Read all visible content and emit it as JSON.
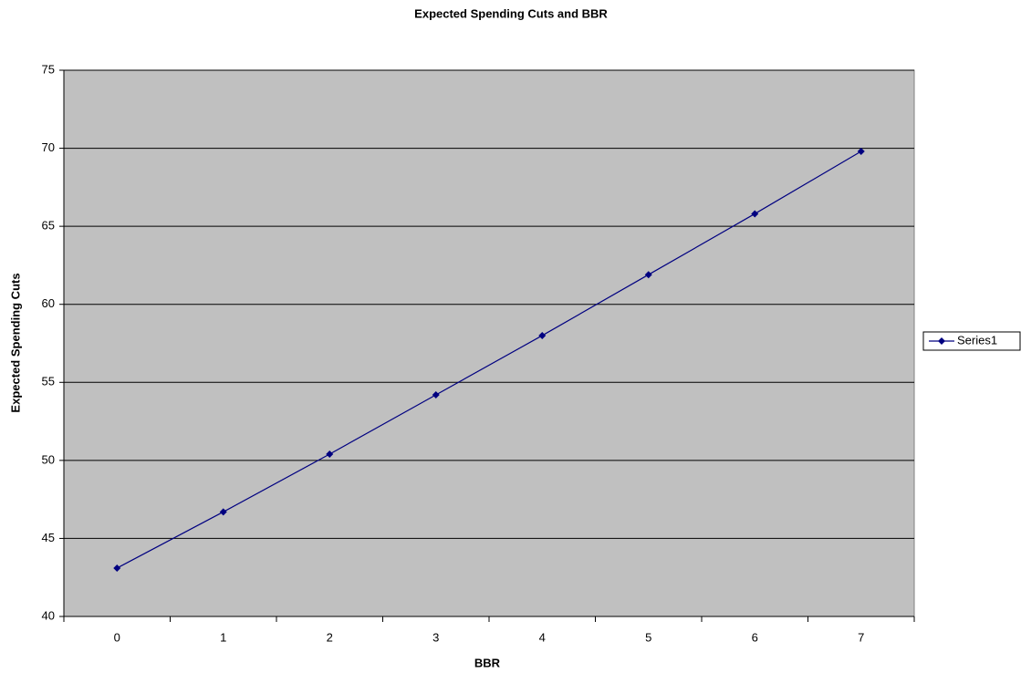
{
  "chart_data": {
    "type": "line",
    "title": "Expected Spending Cuts and BBR",
    "x_label": "BBR",
    "y_label": "Expected Spending Cuts",
    "categories": [
      "0",
      "1",
      "2",
      "3",
      "4",
      "5",
      "6",
      "7"
    ],
    "series": [
      {
        "name": "Series1",
        "color": "#000080",
        "values": [
          43.1,
          46.7,
          50.4,
          54.2,
          58.0,
          61.9,
          65.8,
          69.8
        ]
      }
    ],
    "ylim": [
      40,
      75
    ],
    "yticks": [
      40,
      45,
      50,
      55,
      60,
      65,
      70,
      75
    ],
    "grid": true,
    "plot_background": "#c0c0c0",
    "legend": "right"
  }
}
